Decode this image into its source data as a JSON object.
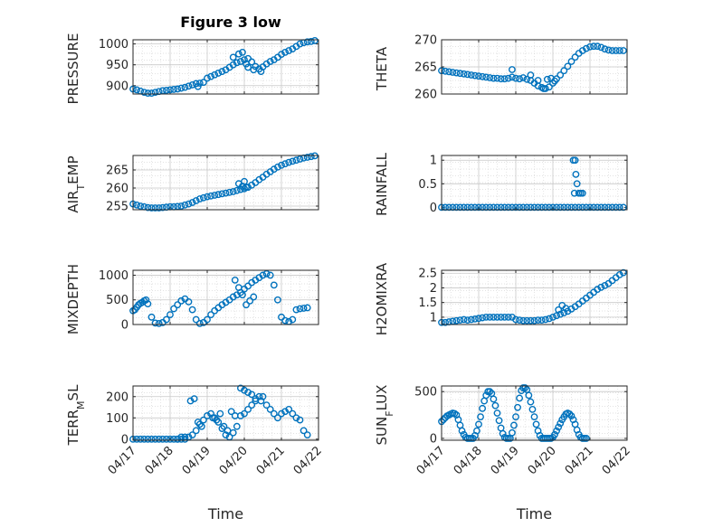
{
  "figure": {
    "title": "Figure 3 low"
  },
  "colors": {
    "marker": "#0072BD",
    "axis": "#262626",
    "grid": "#d9d9d9"
  },
  "chart_data": [
    {
      "type": "scatter",
      "title": "Figure 3 low",
      "ylabel": "PRESSURE",
      "xlabel": "",
      "xlim": [
        0,
        5
      ],
      "ylim": [
        880,
        1010
      ],
      "yticks": [
        900,
        950,
        1000
      ],
      "yticklabels": [
        "900",
        "950",
        "1000"
      ],
      "x": [
        0,
        0.1,
        0.2,
        0.3,
        0.4,
        0.5,
        0.6,
        0.7,
        0.8,
        0.9,
        1.0,
        1.1,
        1.2,
        1.3,
        1.4,
        1.5,
        1.6,
        1.7,
        1.8,
        1.9,
        2.0,
        2.1,
        2.2,
        2.3,
        2.4,
        2.5,
        2.6,
        2.7,
        2.8,
        2.9,
        3.0,
        3.1,
        3.2,
        3.3,
        3.4,
        3.5,
        3.6,
        3.7,
        3.8,
        3.9,
        4.0,
        4.1,
        4.2,
        4.3,
        4.4,
        4.5,
        4.6,
        4.7,
        4.8,
        4.9,
        1.75,
        2.7,
        2.85,
        2.95,
        3.05,
        3.1,
        3.25,
        3.45
      ],
      "y": [
        892,
        890,
        887,
        884,
        882,
        882,
        884,
        886,
        888,
        889,
        890,
        891,
        892,
        894,
        896,
        899,
        902,
        905,
        906,
        908,
        918,
        922,
        926,
        930,
        934,
        938,
        944,
        950,
        955,
        958,
        962,
        965,
        957,
        946,
        940,
        945,
        952,
        958,
        962,
        968,
        975,
        980,
        984,
        988,
        994,
        1000,
        1003,
        1005,
        1006,
        1008,
        898,
        968,
        976,
        980,
        952,
        944,
        938,
        934
      ],
      "markers": "open-circle",
      "grid": true
    },
    {
      "type": "scatter",
      "ylabel": "THETA",
      "xlabel": "",
      "xlim": [
        0,
        5
      ],
      "ylim": [
        260,
        270
      ],
      "yticks": [
        260,
        265,
        270
      ],
      "yticklabels": [
        "260",
        "265",
        "270"
      ],
      "x": [
        0,
        0.1,
        0.2,
        0.3,
        0.4,
        0.5,
        0.6,
        0.7,
        0.8,
        0.9,
        1.0,
        1.1,
        1.2,
        1.3,
        1.4,
        1.5,
        1.6,
        1.7,
        1.8,
        1.9,
        2.0,
        2.1,
        2.2,
        2.3,
        2.4,
        2.5,
        2.6,
        2.7,
        2.8,
        2.9,
        3.0,
        3.1,
        3.2,
        3.3,
        3.4,
        3.5,
        3.6,
        3.7,
        3.8,
        3.9,
        4.0,
        4.1,
        4.2,
        4.3,
        4.4,
        4.5,
        4.6,
        4.7,
        4.8,
        4.9,
        1.9,
        2.4,
        2.6,
        2.75,
        2.85,
        2.95,
        3.05
      ],
      "y": [
        264.3,
        264.2,
        264.1,
        264.0,
        263.9,
        263.8,
        263.7,
        263.6,
        263.5,
        263.4,
        263.3,
        263.2,
        263.1,
        263.0,
        262.9,
        262.9,
        262.8,
        262.8,
        262.9,
        263.1,
        262.9,
        262.8,
        263.0,
        262.7,
        262.5,
        262.0,
        261.5,
        261.2,
        261.0,
        261.3,
        262.0,
        262.8,
        263.5,
        264.3,
        265.1,
        266.0,
        266.8,
        267.5,
        268.0,
        268.4,
        268.7,
        268.8,
        268.8,
        268.6,
        268.3,
        268.1,
        268.0,
        268.0,
        268.0,
        268.0,
        264.5,
        263.5,
        262.5,
        261.0,
        262.7,
        262.9,
        262.4
      ],
      "markers": "open-circle",
      "grid": true
    },
    {
      "type": "scatter",
      "ylabel": "AIR_T_EMP",
      "xlabel": "",
      "xlim": [
        0,
        5
      ],
      "ylim": [
        254,
        269
      ],
      "yticks": [
        255,
        260,
        265
      ],
      "yticklabels": [
        "255",
        "260",
        "265"
      ],
      "x": [
        0,
        0.1,
        0.2,
        0.3,
        0.4,
        0.5,
        0.6,
        0.7,
        0.8,
        0.9,
        1.0,
        1.1,
        1.2,
        1.3,
        1.4,
        1.5,
        1.6,
        1.7,
        1.8,
        1.9,
        2.0,
        2.1,
        2.2,
        2.3,
        2.4,
        2.5,
        2.6,
        2.7,
        2.8,
        2.9,
        3.0,
        3.1,
        3.2,
        3.3,
        3.4,
        3.5,
        3.6,
        3.7,
        3.8,
        3.9,
        4.0,
        4.1,
        4.2,
        4.3,
        4.4,
        4.5,
        4.6,
        4.7,
        4.8,
        4.9,
        2.85,
        2.95,
        3.0,
        3.05
      ],
      "y": [
        255.6,
        255.3,
        255.0,
        254.8,
        254.6,
        254.5,
        254.5,
        254.5,
        254.6,
        254.7,
        254.8,
        254.8,
        254.9,
        255.0,
        255.3,
        255.6,
        256.0,
        256.5,
        257.0,
        257.3,
        257.6,
        257.8,
        258.0,
        258.2,
        258.4,
        258.6,
        258.8,
        259.0,
        259.3,
        259.6,
        259.8,
        260.2,
        260.8,
        261.5,
        262.3,
        263.0,
        263.8,
        264.5,
        265.2,
        265.8,
        266.3,
        266.7,
        267.1,
        267.4,
        267.7,
        268.0,
        268.3,
        268.5,
        268.7,
        268.9,
        261.2,
        260.5,
        261.8,
        260.2
      ],
      "markers": "open-circle",
      "grid": true
    },
    {
      "type": "scatter",
      "ylabel": "RAINFALL",
      "xlabel": "",
      "xlim": [
        0,
        5
      ],
      "ylim": [
        -0.05,
        1.1
      ],
      "yticks": [
        0,
        0.5,
        1
      ],
      "yticklabels": [
        "0",
        "0.5",
        "1"
      ],
      "x": [
        0,
        0.1,
        0.2,
        0.3,
        0.4,
        0.5,
        0.6,
        0.7,
        0.8,
        0.9,
        1.0,
        1.1,
        1.2,
        1.3,
        1.4,
        1.5,
        1.6,
        1.7,
        1.8,
        1.9,
        2.0,
        2.1,
        2.2,
        2.3,
        2.4,
        2.5,
        2.6,
        2.7,
        2.8,
        2.9,
        3.0,
        3.1,
        3.2,
        3.3,
        3.4,
        3.5,
        3.6,
        3.7,
        3.8,
        3.9,
        4.0,
        4.1,
        4.2,
        4.3,
        4.4,
        4.5,
        4.6,
        4.7,
        4.8,
        4.9,
        3.55,
        3.6,
        3.62,
        3.65,
        3.58,
        3.7,
        3.75,
        3.8
      ],
      "y": [
        0,
        0,
        0,
        0,
        0,
        0,
        0,
        0,
        0,
        0,
        0,
        0,
        0,
        0,
        0,
        0,
        0,
        0,
        0,
        0,
        0,
        0,
        0,
        0,
        0,
        0,
        0,
        0,
        0,
        0,
        0,
        0,
        0,
        0,
        0,
        0,
        0,
        0,
        0,
        0,
        0,
        0,
        0,
        0,
        0,
        0,
        0,
        0,
        0,
        0,
        1.0,
        1.0,
        0.7,
        0.5,
        0.3,
        0.3,
        0.3,
        0.3
      ],
      "markers": "open-circle",
      "grid": true
    },
    {
      "type": "scatter",
      "ylabel": "MIXDEPTH",
      "xlabel": "",
      "xlim": [
        0,
        5
      ],
      "ylim": [
        0,
        1100
      ],
      "yticks": [
        0,
        500,
        1000
      ],
      "yticklabels": [
        "0",
        "500",
        "1000"
      ],
      "x": [
        0,
        0.05,
        0.1,
        0.15,
        0.2,
        0.25,
        0.3,
        0.35,
        0.4,
        0.5,
        0.6,
        0.7,
        0.8,
        0.9,
        1.0,
        1.1,
        1.2,
        1.3,
        1.4,
        1.5,
        1.6,
        1.7,
        1.8,
        1.9,
        2.0,
        2.1,
        2.2,
        2.3,
        2.4,
        2.5,
        2.6,
        2.7,
        2.8,
        2.9,
        3.0,
        3.1,
        3.2,
        3.3,
        3.4,
        3.5,
        3.6,
        3.7,
        3.8,
        3.9,
        4.0,
        4.1,
        4.2,
        4.3,
        4.4,
        4.5,
        4.6,
        4.7,
        2.75,
        2.85,
        2.95,
        3.05,
        3.15,
        3.25
      ],
      "y": [
        280,
        300,
        350,
        400,
        430,
        450,
        480,
        500,
        420,
        150,
        30,
        20,
        40,
        100,
        200,
        320,
        400,
        480,
        520,
        460,
        300,
        100,
        20,
        40,
        100,
        200,
        280,
        340,
        400,
        450,
        500,
        560,
        600,
        650,
        720,
        780,
        850,
        900,
        950,
        1000,
        1030,
        1000,
        800,
        500,
        150,
        80,
        60,
        100,
        300,
        320,
        330,
        340,
        900,
        750,
        600,
        400,
        480,
        560
      ],
      "markers": "open-circle",
      "grid": true
    },
    {
      "type": "scatter",
      "ylabel": "H2OMIXRA",
      "xlabel": "",
      "xlim": [
        0,
        5
      ],
      "ylim": [
        0.75,
        2.6
      ],
      "yticks": [
        1,
        1.5,
        2,
        2.5
      ],
      "yticklabels": [
        "1",
        "1.5",
        "2",
        "2.5"
      ],
      "x": [
        0,
        0.1,
        0.2,
        0.3,
        0.4,
        0.5,
        0.6,
        0.7,
        0.8,
        0.9,
        1.0,
        1.1,
        1.2,
        1.3,
        1.4,
        1.5,
        1.6,
        1.7,
        1.8,
        1.9,
        2.0,
        2.1,
        2.2,
        2.3,
        2.4,
        2.5,
        2.6,
        2.7,
        2.8,
        2.9,
        3.0,
        3.1,
        3.2,
        3.3,
        3.4,
        3.5,
        3.6,
        3.7,
        3.8,
        3.9,
        4.0,
        4.1,
        4.2,
        4.3,
        4.4,
        4.5,
        4.6,
        4.7,
        4.8,
        4.9,
        3.15,
        3.25,
        3.35
      ],
      "y": [
        0.82,
        0.82,
        0.84,
        0.86,
        0.88,
        0.9,
        0.92,
        0.9,
        0.92,
        0.94,
        0.96,
        0.98,
        1.0,
        1.0,
        1.0,
        1.0,
        1.0,
        1.0,
        1.0,
        1.0,
        0.92,
        0.9,
        0.88,
        0.88,
        0.88,
        0.88,
        0.9,
        0.9,
        0.92,
        0.95,
        1.0,
        1.05,
        1.1,
        1.15,
        1.2,
        1.28,
        1.36,
        1.45,
        1.55,
        1.65,
        1.75,
        1.85,
        1.95,
        2.02,
        2.08,
        2.15,
        2.25,
        2.35,
        2.45,
        2.52,
        1.25,
        1.4,
        1.3
      ],
      "markers": "open-circle",
      "grid": true
    },
    {
      "type": "scatter",
      "ylabel": "TERR_M_SL",
      "xlabel": "Time",
      "xlim": [
        0,
        5
      ],
      "ylim": [
        -5,
        250
      ],
      "yticks": [
        0,
        100,
        200
      ],
      "yticklabels": [
        "0",
        "100",
        "200"
      ],
      "xticks": [
        0,
        1,
        2,
        3,
        4,
        5
      ],
      "xticklabels": [
        "04/17",
        "04/18",
        "04/19",
        "04/20",
        "04/21",
        "04/22"
      ],
      "x": [
        0,
        0.1,
        0.2,
        0.3,
        0.4,
        0.5,
        0.6,
        0.7,
        0.8,
        0.9,
        1.0,
        1.1,
        1.2,
        1.3,
        1.4,
        1.5,
        1.6,
        1.7,
        1.8,
        1.9,
        2.0,
        2.1,
        2.2,
        2.3,
        2.4,
        2.5,
        2.6,
        2.7,
        2.8,
        2.9,
        3.0,
        3.1,
        3.2,
        3.3,
        3.4,
        3.5,
        3.6,
        3.7,
        3.8,
        3.9,
        4.0,
        4.1,
        4.2,
        4.3,
        4.4,
        4.5,
        4.6,
        4.7,
        1.2,
        1.3,
        1.4,
        1.55,
        1.65,
        1.75,
        1.85,
        2.15,
        2.25,
        2.35,
        2.45,
        2.55,
        2.65,
        2.75,
        2.9,
        3.0,
        3.1,
        3.2,
        3.3,
        3.45
      ],
      "y": [
        0,
        0,
        0,
        0,
        0,
        0,
        0,
        0,
        0,
        0,
        0,
        0,
        0,
        0,
        0,
        10,
        20,
        40,
        70,
        90,
        110,
        120,
        100,
        80,
        50,
        20,
        10,
        30,
        60,
        110,
        120,
        140,
        160,
        180,
        200,
        200,
        160,
        140,
        120,
        100,
        120,
        130,
        140,
        120,
        100,
        90,
        40,
        20,
        0,
        10,
        10,
        180,
        190,
        80,
        60,
        100,
        90,
        120,
        60,
        40,
        130,
        110,
        240,
        230,
        220,
        210,
        190,
        180
      ],
      "markers": "open-circle",
      "grid": true
    },
    {
      "type": "scatter",
      "ylabel": "SUN_F_LUX",
      "xlabel": "Time",
      "xlim": [
        0,
        5
      ],
      "ylim": [
        -20,
        560
      ],
      "yticks": [
        0,
        500
      ],
      "yticklabels": [
        "0",
        "500"
      ],
      "xticks": [
        0,
        1,
        2,
        3,
        4,
        5
      ],
      "xticklabels": [
        "04/17",
        "04/18",
        "04/19",
        "04/20",
        "04/21",
        "04/22"
      ],
      "x": [
        0,
        0.05,
        0.1,
        0.15,
        0.2,
        0.25,
        0.3,
        0.35,
        0.4,
        0.45,
        0.5,
        0.55,
        0.6,
        0.65,
        0.7,
        0.75,
        0.8,
        0.85,
        0.9,
        0.95,
        1.0,
        1.05,
        1.1,
        1.15,
        1.2,
        1.25,
        1.3,
        1.35,
        1.4,
        1.45,
        1.5,
        1.55,
        1.6,
        1.65,
        1.7,
        1.75,
        1.8,
        1.85,
        1.9,
        1.95,
        2.0,
        2.05,
        2.1,
        2.15,
        2.2,
        2.25,
        2.3,
        2.35,
        2.4,
        2.45,
        2.5,
        2.55,
        2.6,
        2.65,
        2.7,
        2.75,
        2.8,
        2.85,
        2.9,
        2.95,
        3.0,
        3.05,
        3.1,
        3.15,
        3.2,
        3.25,
        3.3,
        3.35,
        3.4,
        3.45,
        3.5,
        3.55,
        3.6,
        3.65,
        3.7,
        3.75,
        3.8,
        3.85,
        3.9
      ],
      "y": [
        180,
        200,
        220,
        240,
        250,
        260,
        270,
        265,
        250,
        200,
        140,
        80,
        40,
        10,
        0,
        0,
        0,
        0,
        30,
        80,
        150,
        230,
        320,
        400,
        460,
        500,
        500,
        480,
        420,
        350,
        270,
        190,
        110,
        50,
        10,
        0,
        0,
        0,
        60,
        140,
        230,
        330,
        430,
        510,
        540,
        540,
        520,
        460,
        390,
        310,
        230,
        150,
        80,
        30,
        0,
        0,
        0,
        0,
        0,
        0,
        10,
        40,
        80,
        120,
        160,
        200,
        230,
        260,
        270,
        260,
        240,
        200,
        150,
        90,
        40,
        10,
        0,
        0,
        0
      ],
      "markers": "open-circle",
      "grid": true
    }
  ]
}
